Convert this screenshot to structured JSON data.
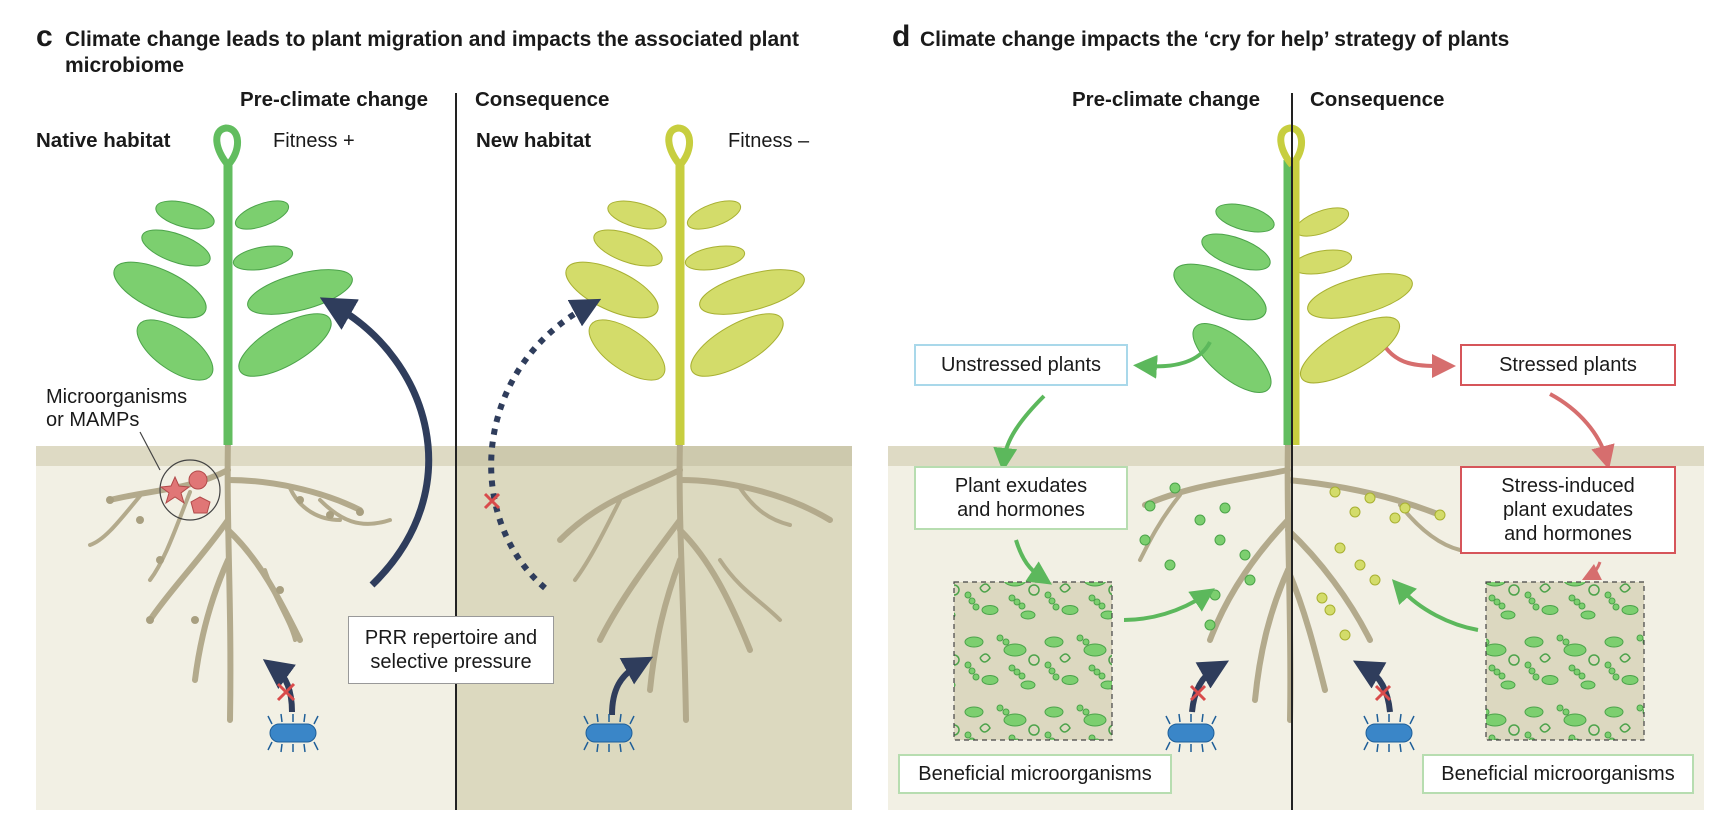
{
  "colors": {
    "soil_light": "#f2f0e4",
    "soil_dark": "#dcd9bf",
    "soil_band": "#cdc9ad",
    "root": "#c2b99a",
    "root_stroke": "#a89f80",
    "plant_green": "#62bd5f",
    "leaf_green": "#7ccf6f",
    "plant_yellow": "#c7ce3f",
    "leaf_yellow": "#d3dc6a",
    "arrow_navy": "#2f3d5c",
    "arrow_green": "#5cb85c",
    "arrow_red": "#d66e6e",
    "microbe_blue": "#3a86c8",
    "box_blue": "#a9d8ea",
    "box_green": "#b7ddb0",
    "box_red": "#d6555a",
    "mamp_red": "#e07676",
    "cross_red": "#d94b4b"
  },
  "panel_c": {
    "label": "c",
    "title_line1": "Climate change leads to plant migration and impacts the associated plant",
    "title_line2": "microbiome",
    "col_pre": "Pre-climate change",
    "col_consequence": "Consequence",
    "native_habitat": "Native habitat",
    "fitness_plus": "Fitness +",
    "new_habitat": "New habitat",
    "fitness_minus": "Fitness –",
    "microorganisms_line1": "Microorganisms",
    "microorganisms_line2": "or MAMPs",
    "prr_line1": "PRR repertoire and",
    "prr_line2": "selective pressure"
  },
  "panel_d": {
    "label": "d",
    "title": "Climate change impacts the ‘cry for help’ strategy of plants",
    "col_pre": "Pre-climate change",
    "col_consequence": "Consequence",
    "unstressed": "Unstressed plants",
    "stressed": "Stressed plants",
    "exudates_line1": "Plant exudates",
    "exudates_line2": "and hormones",
    "stress_exudates_line1": "Stress-induced",
    "stress_exudates_line2": "plant exudates",
    "stress_exudates_line3": "and hormones",
    "beneficial_left": "Beneficial microorganisms",
    "beneficial_right": "Beneficial microorganisms"
  }
}
